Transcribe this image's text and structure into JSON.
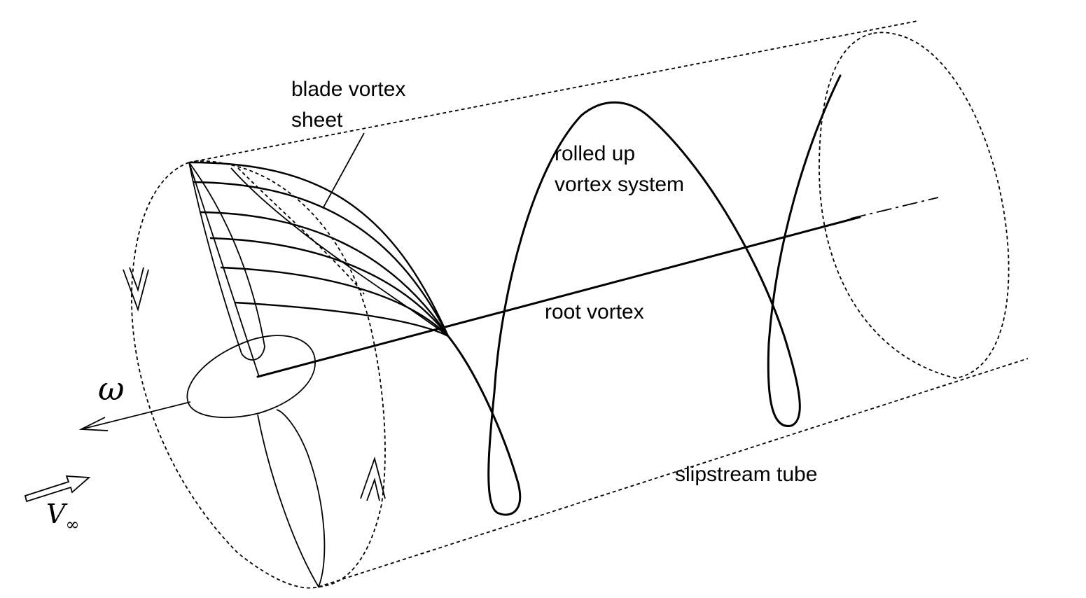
{
  "labels": {
    "blade_vortex_sheet": [
      "blade vortex",
      "sheet"
    ],
    "rolled_up": [
      "rolled up",
      "vortex system"
    ],
    "root_vortex": "root vortex",
    "slipstream_tube": "slipstream tube",
    "omega": "ω",
    "v_inf": "V",
    "v_inf_sub": "∞"
  }
}
